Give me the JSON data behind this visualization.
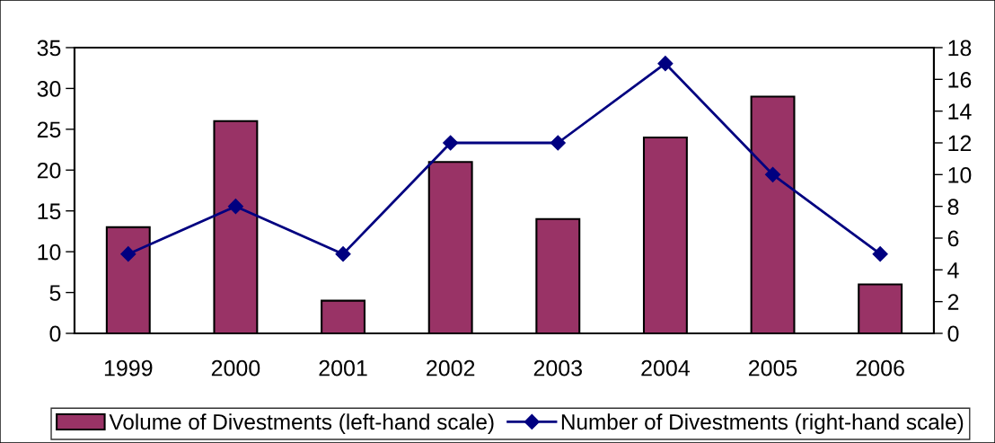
{
  "chart_data": {
    "type": "bar",
    "categories": [
      "1999",
      "2000",
      "2001",
      "2002",
      "2003",
      "2004",
      "2005",
      "2006"
    ],
    "series": [
      {
        "name": "Volume of Divestments (left-hand scale)",
        "color": "#993366",
        "values": [
          13,
          26,
          4,
          21,
          14,
          24,
          29,
          6
        ]
      },
      {
        "name": "Number of Divestments (right-hand scale)",
        "type": "line",
        "axis": "y2",
        "color": "#000080",
        "values": [
          5,
          8,
          5,
          12,
          12,
          17,
          10,
          5
        ]
      }
    ],
    "ylim": [
      0,
      35
    ],
    "yticks": [
      0,
      5,
      10,
      15,
      20,
      25,
      30,
      35
    ],
    "y2lim": [
      0,
      18
    ],
    "y2ticks": [
      0,
      2,
      4,
      6,
      8,
      10,
      12,
      14,
      16,
      18
    ],
    "legend": "bottom",
    "marker": "diamond",
    "line_style": "solid",
    "grid": false
  }
}
